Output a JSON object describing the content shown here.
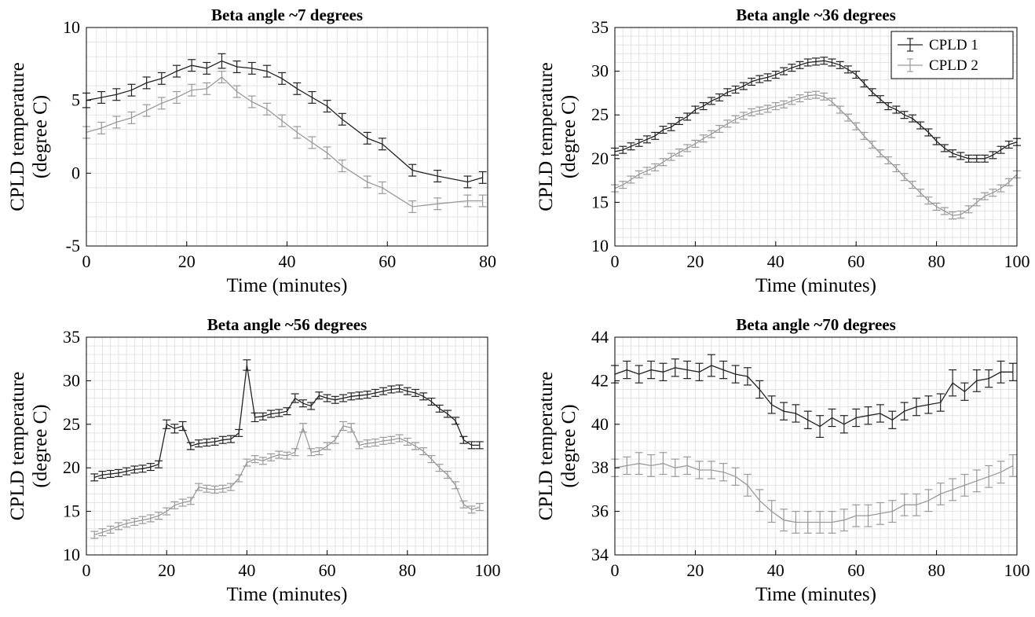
{
  "figure": {
    "series_names": [
      "CPLD 1",
      "CPLD 2"
    ]
  },
  "colors": {
    "cpld1": "#222222",
    "cpld2": "#9a9a9a",
    "grid": "#e4e4e4",
    "axis": "#000000"
  },
  "chart_data": [
    {
      "type": "line",
      "title": "Beta angle ~7 degrees",
      "xlabel": "Time (minutes)",
      "ylabel": [
        "CPLD temperature",
        "(degree C)"
      ],
      "xlim": [
        0,
        80
      ],
      "ylim": [
        -5,
        10
      ],
      "xticks": [
        0,
        20,
        40,
        60,
        80
      ],
      "yticks": [
        -5,
        0,
        5,
        10
      ],
      "xminor": 2,
      "yminor": 1,
      "legend": false,
      "series": [
        {
          "name": "CPLD 1",
          "x": [
            0,
            3,
            6,
            9,
            12,
            15,
            18,
            21,
            24,
            27,
            30,
            33,
            36,
            39,
            42,
            45,
            48,
            51,
            56,
            59,
            65,
            70,
            76,
            79
          ],
          "y": [
            5.0,
            5.2,
            5.4,
            5.7,
            6.2,
            6.5,
            7.0,
            7.4,
            7.2,
            7.7,
            7.3,
            7.2,
            7.0,
            6.5,
            5.8,
            5.2,
            4.6,
            3.7,
            2.4,
            2.0,
            0.2,
            -0.2,
            -0.6,
            -0.3
          ],
          "err": [
            0.5,
            0.4,
            0.4,
            0.4,
            0.4,
            0.4,
            0.4,
            0.4,
            0.4,
            0.5,
            0.4,
            0.4,
            0.4,
            0.4,
            0.4,
            0.4,
            0.4,
            0.4,
            0.4,
            0.4,
            0.4,
            0.4,
            0.4,
            0.4
          ]
        },
        {
          "name": "CPLD 2",
          "x": [
            0,
            3,
            6,
            9,
            12,
            15,
            18,
            21,
            24,
            27,
            30,
            33,
            36,
            39,
            42,
            45,
            48,
            51,
            56,
            59,
            65,
            70,
            76,
            79
          ],
          "y": [
            2.8,
            3.1,
            3.5,
            3.8,
            4.3,
            4.8,
            5.2,
            5.7,
            5.8,
            6.6,
            5.6,
            4.9,
            4.4,
            3.6,
            2.8,
            2.1,
            1.4,
            0.5,
            -0.6,
            -1.0,
            -2.3,
            -2.1,
            -1.9,
            -1.9
          ],
          "err": [
            0.4,
            0.4,
            0.4,
            0.4,
            0.4,
            0.4,
            0.4,
            0.4,
            0.4,
            0.4,
            0.4,
            0.4,
            0.4,
            0.4,
            0.4,
            0.4,
            0.4,
            0.4,
            0.4,
            0.4,
            0.4,
            0.4,
            0.4,
            0.4
          ]
        }
      ]
    },
    {
      "type": "line",
      "title": "Beta angle ~36 degrees",
      "xlabel": "Time (minutes)",
      "ylabel": [
        "CPLD temperature",
        "(degree C)"
      ],
      "xlim": [
        0,
        100
      ],
      "ylim": [
        10,
        35
      ],
      "xticks": [
        0,
        20,
        40,
        60,
        80,
        100
      ],
      "yticks": [
        10,
        15,
        20,
        25,
        30,
        35
      ],
      "xminor": 2,
      "yminor": 1,
      "legend": true,
      "legend_position": "top-right",
      "series": [
        {
          "name": "CPLD 1",
          "x": [
            0,
            2,
            4,
            6,
            8,
            10,
            12,
            14,
            16,
            18,
            20,
            22,
            24,
            26,
            28,
            30,
            32,
            34,
            36,
            38,
            40,
            42,
            44,
            46,
            48,
            50,
            52,
            54,
            56,
            58,
            60,
            62,
            64,
            66,
            68,
            70,
            72,
            74,
            76,
            78,
            80,
            82,
            84,
            86,
            88,
            90,
            92,
            94,
            96,
            98,
            100
          ],
          "y": [
            20.8,
            21.0,
            21.4,
            21.8,
            22.2,
            22.6,
            23.3,
            23.6,
            24.3,
            24.8,
            25.6,
            26.0,
            26.6,
            27.0,
            27.6,
            27.9,
            28.3,
            28.8,
            29.1,
            29.3,
            29.6,
            30.0,
            30.4,
            30.7,
            31.0,
            31.1,
            31.2,
            31.0,
            30.7,
            30.2,
            29.6,
            28.6,
            27.6,
            26.8,
            26.0,
            25.6,
            25.0,
            24.6,
            23.8,
            23.0,
            22.0,
            21.2,
            20.6,
            20.3,
            20.0,
            20.0,
            20.0,
            20.4,
            21.0,
            21.6,
            21.9
          ],
          "err": [
            0.4,
            0.4,
            0.4,
            0.4,
            0.4,
            0.4,
            0.4,
            0.4,
            0.4,
            0.4,
            0.4,
            0.4,
            0.4,
            0.4,
            0.4,
            0.4,
            0.4,
            0.4,
            0.4,
            0.4,
            0.4,
            0.4,
            0.4,
            0.4,
            0.4,
            0.4,
            0.4,
            0.4,
            0.4,
            0.4,
            0.4,
            0.4,
            0.4,
            0.4,
            0.4,
            0.4,
            0.4,
            0.4,
            0.4,
            0.4,
            0.4,
            0.4,
            0.4,
            0.4,
            0.4,
            0.4,
            0.4,
            0.4,
            0.4,
            0.4,
            0.4
          ]
        },
        {
          "name": "CPLD 2",
          "x": [
            0,
            2,
            4,
            6,
            8,
            10,
            12,
            14,
            16,
            18,
            20,
            22,
            24,
            26,
            28,
            30,
            32,
            34,
            36,
            38,
            40,
            42,
            44,
            46,
            48,
            50,
            52,
            54,
            56,
            58,
            60,
            62,
            64,
            66,
            68,
            70,
            72,
            74,
            76,
            78,
            80,
            82,
            84,
            86,
            88,
            90,
            92,
            94,
            96,
            98,
            100
          ],
          "y": [
            16.6,
            17.0,
            17.6,
            18.2,
            18.6,
            19.0,
            19.6,
            20.2,
            20.7,
            21.2,
            21.7,
            22.3,
            22.8,
            23.4,
            24.0,
            24.5,
            24.9,
            25.3,
            25.5,
            25.7,
            26.0,
            26.2,
            26.6,
            26.9,
            27.2,
            27.3,
            27.1,
            26.5,
            25.6,
            24.7,
            23.7,
            22.6,
            21.6,
            20.6,
            19.8,
            18.9,
            17.9,
            17.0,
            16.1,
            15.2,
            14.5,
            14.0,
            13.5,
            13.6,
            14.2,
            15.0,
            15.7,
            16.1,
            16.6,
            17.3,
            18.2
          ],
          "err": [
            0.4,
            0.4,
            0.4,
            0.4,
            0.4,
            0.4,
            0.4,
            0.4,
            0.4,
            0.4,
            0.4,
            0.4,
            0.4,
            0.4,
            0.4,
            0.4,
            0.4,
            0.4,
            0.4,
            0.4,
            0.4,
            0.4,
            0.4,
            0.4,
            0.4,
            0.4,
            0.4,
            0.4,
            0.4,
            0.4,
            0.4,
            0.4,
            0.4,
            0.4,
            0.4,
            0.4,
            0.4,
            0.4,
            0.4,
            0.4,
            0.4,
            0.4,
            0.4,
            0.4,
            0.4,
            0.4,
            0.4,
            0.4,
            0.4,
            0.4,
            0.4
          ]
        }
      ]
    },
    {
      "type": "line",
      "title": "Beta angle ~56 degrees",
      "xlabel": "Time (minutes)",
      "ylabel": [
        "CPLD temperature",
        "(degree C)"
      ],
      "xlim": [
        0,
        100
      ],
      "ylim": [
        10,
        35
      ],
      "xticks": [
        0,
        20,
        40,
        60,
        80,
        100
      ],
      "yticks": [
        10,
        15,
        20,
        25,
        30,
        35
      ],
      "xminor": 2,
      "yminor": 1,
      "legend": false,
      "series": [
        {
          "name": "CPLD 1",
          "x": [
            2,
            4,
            6,
            8,
            10,
            12,
            14,
            16,
            18,
            20,
            22,
            24,
            26,
            28,
            30,
            32,
            34,
            36,
            38,
            40,
            42,
            44,
            46,
            48,
            50,
            52,
            54,
            56,
            58,
            60,
            62,
            64,
            66,
            68,
            70,
            72,
            74,
            76,
            78,
            80,
            82,
            84,
            86,
            88,
            90,
            92,
            94,
            96,
            98
          ],
          "y": [
            18.9,
            19.2,
            19.3,
            19.4,
            19.6,
            19.8,
            19.9,
            20.1,
            20.4,
            25.0,
            24.5,
            24.8,
            22.5,
            22.8,
            22.9,
            23.0,
            23.2,
            23.3,
            24.0,
            31.8,
            25.8,
            25.9,
            26.2,
            26.3,
            26.5,
            28.0,
            27.4,
            27.1,
            28.3,
            28.0,
            27.8,
            28.0,
            28.2,
            28.3,
            28.4,
            28.6,
            28.8,
            29.0,
            29.1,
            28.8,
            28.6,
            28.2,
            27.6,
            26.8,
            26.2,
            25.4,
            23.2,
            22.6,
            22.6
          ],
          "err": [
            0.4,
            0.4,
            0.4,
            0.4,
            0.4,
            0.4,
            0.4,
            0.4,
            0.4,
            0.5,
            0.5,
            0.5,
            0.4,
            0.4,
            0.4,
            0.4,
            0.4,
            0.4,
            0.4,
            0.6,
            0.5,
            0.4,
            0.4,
            0.4,
            0.4,
            0.5,
            0.4,
            0.4,
            0.4,
            0.4,
            0.4,
            0.4,
            0.4,
            0.4,
            0.4,
            0.4,
            0.4,
            0.4,
            0.4,
            0.4,
            0.4,
            0.4,
            0.4,
            0.4,
            0.4,
            0.4,
            0.4,
            0.4,
            0.4
          ]
        },
        {
          "name": "CPLD 2",
          "x": [
            2,
            4,
            6,
            8,
            10,
            12,
            14,
            16,
            18,
            20,
            22,
            24,
            26,
            28,
            30,
            32,
            34,
            36,
            38,
            40,
            42,
            44,
            46,
            48,
            50,
            52,
            54,
            56,
            58,
            60,
            62,
            64,
            66,
            68,
            70,
            72,
            74,
            76,
            78,
            80,
            82,
            84,
            86,
            88,
            90,
            92,
            94,
            96,
            98
          ],
          "y": [
            12.3,
            12.6,
            12.9,
            13.3,
            13.6,
            13.8,
            14.0,
            14.2,
            14.5,
            15.0,
            15.7,
            16.0,
            16.2,
            17.8,
            17.6,
            17.5,
            17.6,
            17.8,
            18.8,
            20.6,
            21.0,
            20.8,
            21.2,
            21.5,
            21.4,
            21.8,
            24.6,
            21.8,
            21.9,
            22.5,
            23.2,
            24.8,
            24.6,
            22.6,
            22.8,
            22.9,
            23.1,
            23.2,
            23.4,
            23.0,
            22.5,
            21.9,
            21.0,
            20.0,
            19.2,
            18.0,
            15.8,
            15.2,
            15.5
          ],
          "err": [
            0.4,
            0.4,
            0.4,
            0.4,
            0.4,
            0.4,
            0.4,
            0.4,
            0.4,
            0.4,
            0.4,
            0.4,
            0.4,
            0.4,
            0.4,
            0.4,
            0.4,
            0.4,
            0.4,
            0.4,
            0.4,
            0.4,
            0.4,
            0.4,
            0.4,
            0.4,
            0.5,
            0.4,
            0.4,
            0.4,
            0.4,
            0.5,
            0.5,
            0.4,
            0.4,
            0.4,
            0.4,
            0.4,
            0.4,
            0.4,
            0.4,
            0.4,
            0.4,
            0.4,
            0.4,
            0.4,
            0.4,
            0.4,
            0.4
          ]
        }
      ]
    },
    {
      "type": "line",
      "title": "Beta angle ~70 degrees",
      "xlabel": "Time (minutes)",
      "ylabel": [
        "CPLD temperature",
        "(degree C)"
      ],
      "xlim": [
        0,
        100
      ],
      "ylim": [
        34,
        44
      ],
      "xticks": [
        0,
        20,
        40,
        60,
        80,
        100
      ],
      "yticks": [
        34,
        36,
        38,
        40,
        42,
        44
      ],
      "xminor": 2,
      "yminor": 0.4,
      "legend": false,
      "series": [
        {
          "name": "CPLD 1",
          "x": [
            0,
            3,
            6,
            9,
            12,
            15,
            18,
            21,
            24,
            27,
            30,
            33,
            36,
            39,
            42,
            45,
            48,
            51,
            54,
            57,
            60,
            63,
            66,
            69,
            72,
            75,
            78,
            81,
            84,
            87,
            90,
            93,
            96,
            99
          ],
          "y": [
            42.3,
            42.5,
            42.3,
            42.5,
            42.4,
            42.6,
            42.5,
            42.4,
            42.7,
            42.5,
            42.3,
            42.2,
            41.6,
            40.9,
            40.6,
            40.5,
            40.2,
            39.9,
            40.3,
            40.0,
            40.3,
            40.4,
            40.5,
            40.2,
            40.6,
            40.8,
            40.9,
            41.0,
            41.9,
            41.5,
            42.0,
            42.1,
            42.4,
            42.4
          ],
          "err": [
            0.4,
            0.4,
            0.4,
            0.4,
            0.4,
            0.4,
            0.4,
            0.4,
            0.5,
            0.4,
            0.4,
            0.4,
            0.4,
            0.4,
            0.4,
            0.4,
            0.4,
            0.5,
            0.4,
            0.4,
            0.4,
            0.4,
            0.4,
            0.4,
            0.4,
            0.4,
            0.4,
            0.4,
            0.6,
            0.4,
            0.5,
            0.4,
            0.5,
            0.4
          ]
        },
        {
          "name": "CPLD 2",
          "x": [
            0,
            3,
            6,
            9,
            12,
            15,
            18,
            21,
            24,
            27,
            30,
            33,
            36,
            39,
            42,
            45,
            48,
            51,
            54,
            57,
            60,
            63,
            66,
            69,
            72,
            75,
            78,
            81,
            84,
            87,
            90,
            93,
            96,
            99
          ],
          "y": [
            38.0,
            38.1,
            38.2,
            38.1,
            38.2,
            38.0,
            38.1,
            37.9,
            37.9,
            37.8,
            37.6,
            37.2,
            36.5,
            36.0,
            35.6,
            35.5,
            35.5,
            35.5,
            35.5,
            35.6,
            35.8,
            35.8,
            35.9,
            36.0,
            36.3,
            36.3,
            36.5,
            36.8,
            37.0,
            37.2,
            37.4,
            37.6,
            37.8,
            38.1
          ],
          "err": [
            0.4,
            0.4,
            0.5,
            0.5,
            0.5,
            0.4,
            0.4,
            0.4,
            0.4,
            0.4,
            0.4,
            0.5,
            0.5,
            0.5,
            0.5,
            0.5,
            0.5,
            0.5,
            0.5,
            0.5,
            0.5,
            0.5,
            0.5,
            0.5,
            0.5,
            0.5,
            0.5,
            0.5,
            0.5,
            0.5,
            0.5,
            0.5,
            0.5,
            0.5
          ]
        }
      ]
    }
  ]
}
